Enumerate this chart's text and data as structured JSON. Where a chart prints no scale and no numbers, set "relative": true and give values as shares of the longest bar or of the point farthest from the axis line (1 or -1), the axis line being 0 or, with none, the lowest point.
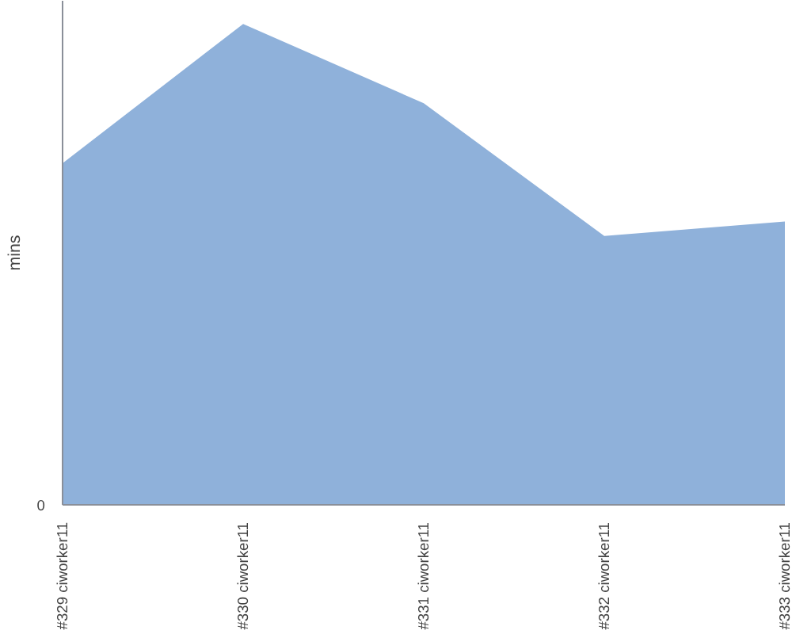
{
  "chart_data": {
    "type": "area",
    "relative": true,
    "ylabel": "mins",
    "categories": [
      "#329 ciworker11",
      "#330 ciworker11",
      "#331 ciworker11",
      "#332 ciworker11",
      "#333 ciworker11"
    ],
    "series": [
      {
        "color": "#8fb1da",
        "values": [
          0.71,
          1,
          0.835,
          0.559,
          0.589
        ]
      }
    ],
    "annotations": [
      "0"
    ],
    "grid": false
  }
}
